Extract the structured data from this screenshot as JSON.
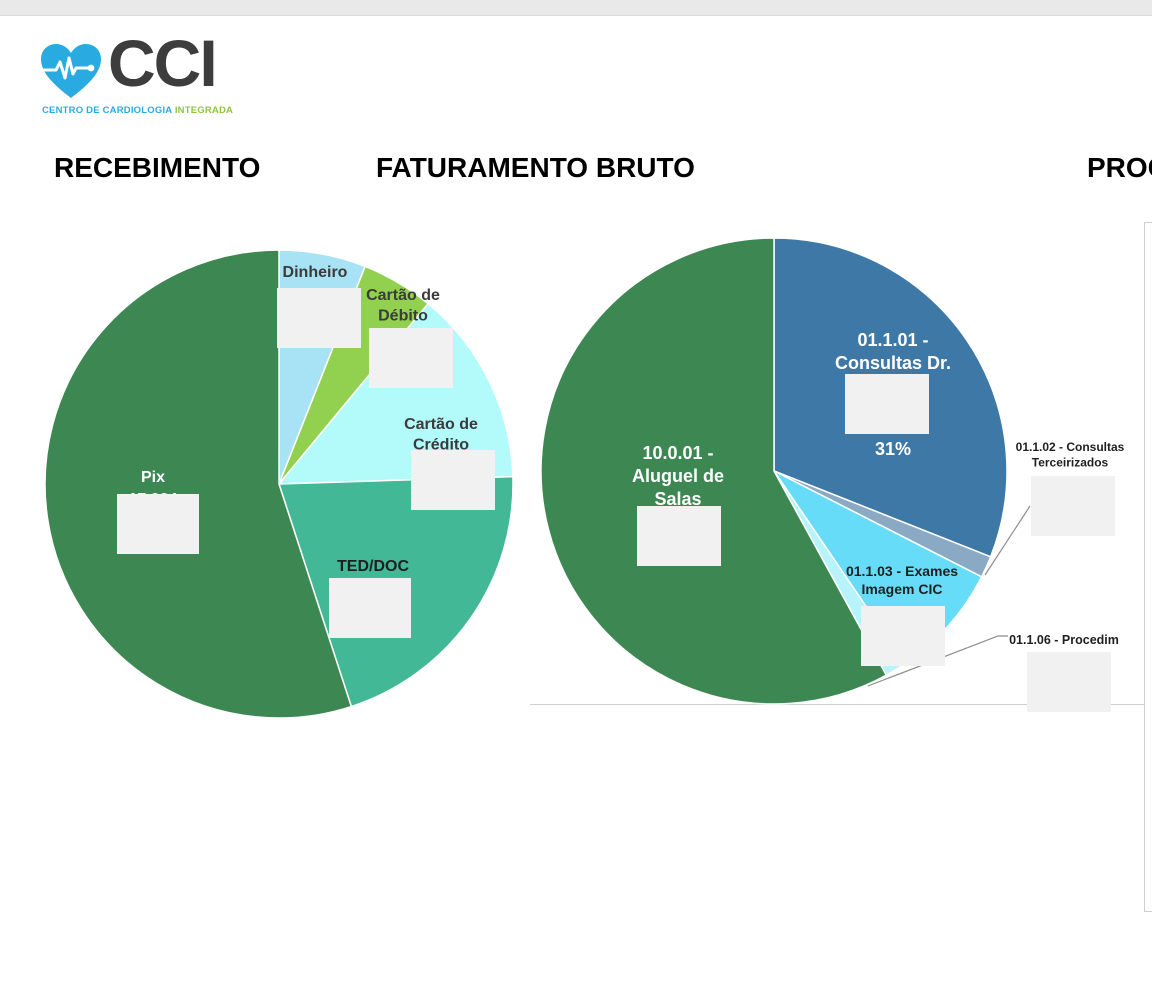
{
  "logo": {
    "brand": "CCI",
    "tagline_part1": "CENTRO DE ",
    "tagline_part2": "CARDIOLOGIA ",
    "tagline_part3": "INTEGRADA",
    "icon": "heart-pulse-icon",
    "colors": {
      "heart": "#29abe2",
      "brand_text": "#3d3d3d",
      "tag_blue": "#29abe2",
      "tag_green": "#8dc63f"
    }
  },
  "sections": {
    "recebimento": "RECEBIMENTO",
    "faturamento": "FATURAMENTO BRUTO",
    "procedimentos": "PROC"
  },
  "chart_data": [
    {
      "type": "pie",
      "title": "RECEBIMENTO",
      "slices": [
        {
          "label": "Dinheiro",
          "value": 6,
          "color": "#a7e3f5",
          "label_color": "#3b3b3b"
        },
        {
          "label": "Cartão de Débito",
          "value": 5,
          "color": "#92d050",
          "label_color": "#3b3b3b"
        },
        {
          "label": "Cartão de Crédito",
          "value": 13.5,
          "color": "#b3fbfb",
          "label_color": "#3b3b3b"
        },
        {
          "label": "TED/DOC",
          "value": 20.5,
          "color": "#43b896",
          "label_color": "#1f1f1f"
        },
        {
          "label": "Pix",
          "value": 55,
          "color": "#3d8753",
          "label_color": "#ffffff",
          "partial_value_text": "17.924"
        }
      ]
    },
    {
      "type": "pie",
      "title": "FATURAMENTO BRUTO",
      "slices": [
        {
          "label": "01.1.01 - Consultas Dr.",
          "value": 31,
          "percent_label": "31%",
          "color": "#3e78a6",
          "label_color": "#ffffff"
        },
        {
          "label": "01.1.02 - Consultas Terceirizados",
          "value": 1.5,
          "color": "#8aa9c4",
          "label_color": "#1f1f1f"
        },
        {
          "label": "01.1.03 - Exames Imagem CIC",
          "value": 8,
          "color": "#66dcf9",
          "label_color": "#1f1f1f"
        },
        {
          "label": "01.1.06 - Procedim",
          "value": 1.5,
          "color": "#b8f3fb",
          "label_color": "#1f1f1f"
        },
        {
          "label": "10.0.01 - Aluguel de Salas",
          "value": 58,
          "percent_label": "58%",
          "color": "#3d8753",
          "label_color": "#ffffff"
        }
      ]
    }
  ]
}
